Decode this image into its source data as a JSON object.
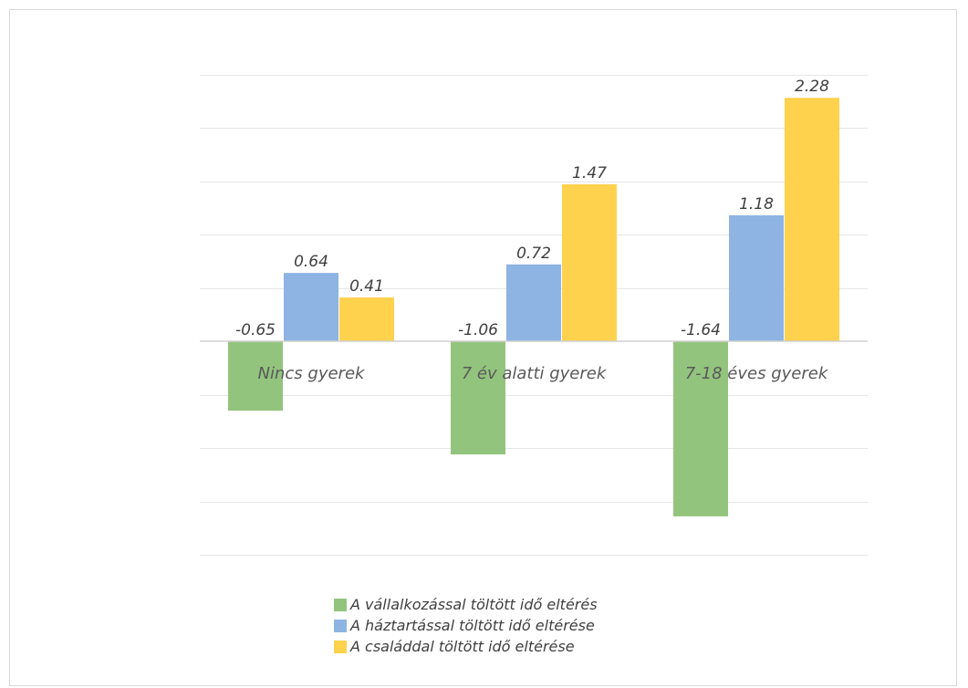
{
  "chart_data": {
    "type": "bar",
    "categories": [
      "Nincs gyerek",
      "7 év alatti gyerek",
      "7-18 éves gyerek"
    ],
    "series": [
      {
        "name": "A vállalkozással töltött idő eltérés",
        "values": [
          -0.65,
          -1.06,
          -1.64
        ],
        "color": "#93c47d"
      },
      {
        "name": "A háztartással töltött idő eltérése",
        "values": [
          0.64,
          0.72,
          1.18
        ],
        "color": "#8db4e2"
      },
      {
        "name": "A családdal töltött idő eltérése",
        "values": [
          0.41,
          1.47,
          2.28
        ],
        "color": "#ffd24d"
      }
    ],
    "title": "",
    "xlabel": "",
    "ylabel": "",
    "ylim": [
      -2.0,
      2.5
    ],
    "grid": true,
    "legend_position": "bottom",
    "data_labels": true,
    "y_tick_labels_visible": false
  }
}
